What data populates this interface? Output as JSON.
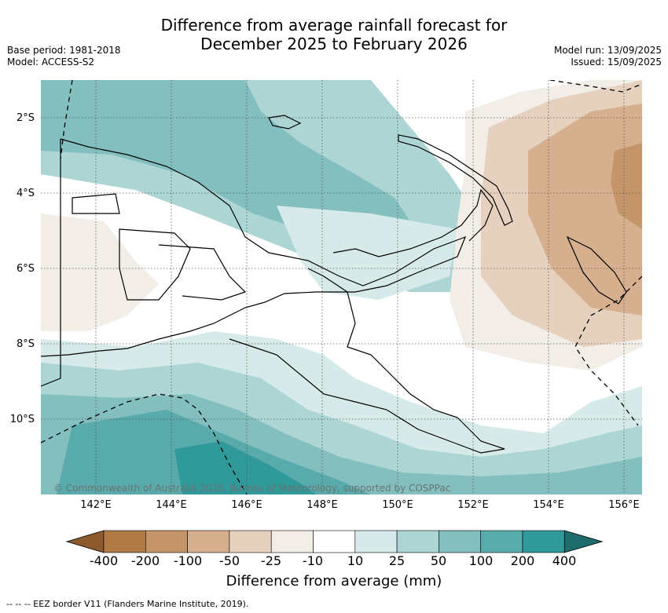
{
  "title_line1": "Difference from average rainfall forecast for",
  "title_line2": "December 2025 to February 2026",
  "meta_left": {
    "base_period": "Base period: 1981-2018",
    "model": "Model: ACCESS-S2"
  },
  "meta_right": {
    "model_run": "Model run: 13/09/2025",
    "issued": "Issued: 15/09/2025"
  },
  "latitude_labels": [
    "2°S",
    "4°S",
    "6°S",
    "8°S",
    "10°S"
  ],
  "longitude_labels": [
    "142°E",
    "144°E",
    "146°E",
    "148°E",
    "150°E",
    "152°E",
    "154°E",
    "156°E"
  ],
  "copyright": "© Commonwealth of Australia 2025, Bureau of Meteorology, supported by COSPPac",
  "colorbar": {
    "title": "Difference from average (mm)",
    "ticks": [
      "-400",
      "-200",
      "-100",
      "-50",
      "-25",
      "-10",
      "10",
      "25",
      "50",
      "100",
      "200",
      "400"
    ],
    "colors": [
      "#8c5a2b",
      "#b07a44",
      "#c49568",
      "#d6b08e",
      "#e6d1bf",
      "#f2ede6",
      "#ffffff",
      "#d6eae9",
      "#acd5d4",
      "#83bfbf",
      "#59aaab",
      "#30999a",
      "#1d6b6b"
    ]
  },
  "footnote": "--  --  -- EEZ border V11 (Flanders Marine Institute, 2019)."
}
